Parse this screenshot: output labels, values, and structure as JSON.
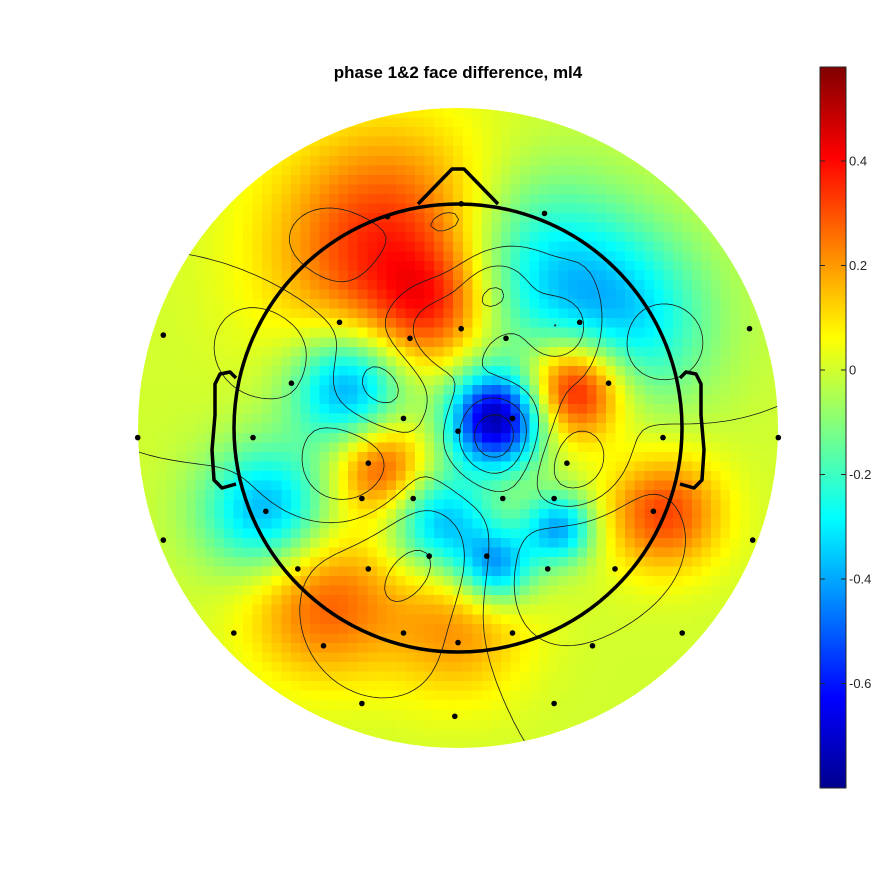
{
  "chart_data": {
    "type": "heatmap",
    "subtype": "scalp-topography",
    "title": "phase 1&2 face difference, ml4",
    "colormap": "jet",
    "color_range": [
      -0.8,
      0.58
    ],
    "colorbar": {
      "ticks": [
        0.4,
        0.2,
        0,
        -0.2,
        -0.4,
        -0.6
      ],
      "tick_labels": [
        "0.4",
        "0.2",
        "0",
        "-0.2",
        "-0.4",
        "-0.6"
      ]
    },
    "sources": [
      {
        "x": -0.3,
        "y": 0.81,
        "value": 0.38,
        "spread": 0.36
      },
      {
        "x": -0.1,
        "y": 0.55,
        "value": 0.22,
        "spread": 0.18
      },
      {
        "x": 0.52,
        "y": 0.18,
        "value": 0.52,
        "spread": 0.16
      },
      {
        "x": 0.17,
        "y": 0.04,
        "value": -0.75,
        "spread": 0.15
      },
      {
        "x": -0.49,
        "y": 0.18,
        "value": -0.45,
        "spread": 0.18
      },
      {
        "x": -0.34,
        "y": -0.18,
        "value": 0.32,
        "spread": 0.15
      },
      {
        "x": 0.33,
        "y": 0.73,
        "value": -0.3,
        "spread": 0.3
      },
      {
        "x": 0.74,
        "y": 0.48,
        "value": -0.3,
        "spread": 0.28
      },
      {
        "x": -0.08,
        "y": -0.42,
        "value": -0.38,
        "spread": 0.16
      },
      {
        "x": 0.17,
        "y": -0.62,
        "value": -0.42,
        "spread": 0.12
      },
      {
        "x": 0.45,
        "y": -0.45,
        "value": -0.4,
        "spread": 0.11
      },
      {
        "x": -0.86,
        "y": -0.37,
        "value": -0.4,
        "spread": 0.2
      },
      {
        "x": -0.6,
        "y": -0.78,
        "value": 0.28,
        "spread": 0.24
      },
      {
        "x": 0.92,
        "y": -0.38,
        "value": 0.32,
        "spread": 0.18
      },
      {
        "x": 0.0,
        "y": -0.9,
        "value": 0.2,
        "spread": 0.22
      }
    ],
    "contour_levels": [
      -0.6,
      -0.4,
      -0.2,
      0,
      0.2,
      0.4
    ],
    "electrodes": [
      [
        -0.22,
        0.66
      ],
      [
        0.01,
        0.7
      ],
      [
        0.27,
        0.67
      ],
      [
        -0.92,
        0.29
      ],
      [
        -0.37,
        0.33
      ],
      [
        -0.15,
        0.28
      ],
      [
        0.01,
        0.31
      ],
      [
        0.15,
        0.28
      ],
      [
        0.38,
        0.33
      ],
      [
        0.91,
        0.31
      ],
      [
        -0.52,
        0.14
      ],
      [
        0.47,
        0.14
      ],
      [
        -0.64,
        -0.03
      ],
      [
        -0.17,
        0.03
      ],
      [
        0.0,
        -0.01
      ],
      [
        0.17,
        0.03
      ],
      [
        0.64,
        -0.03
      ],
      [
        -1.0,
        -0.03
      ],
      [
        -0.28,
        -0.11
      ],
      [
        0.34,
        -0.11
      ],
      [
        1.0,
        -0.03
      ],
      [
        -0.6,
        -0.26
      ],
      [
        -0.3,
        -0.22
      ],
      [
        -0.14,
        -0.22
      ],
      [
        0.14,
        -0.22
      ],
      [
        0.3,
        -0.22
      ],
      [
        0.61,
        -0.26
      ],
      [
        -0.92,
        -0.35
      ],
      [
        0.92,
        -0.35
      ],
      [
        -0.5,
        -0.44
      ],
      [
        -0.28,
        -0.44
      ],
      [
        -0.09,
        -0.4
      ],
      [
        0.09,
        -0.4
      ],
      [
        0.28,
        -0.44
      ],
      [
        0.49,
        -0.44
      ],
      [
        -0.7,
        -0.64
      ],
      [
        -0.42,
        -0.68
      ],
      [
        -0.17,
        -0.64
      ],
      [
        0.0,
        -0.67
      ],
      [
        0.17,
        -0.64
      ],
      [
        0.42,
        -0.68
      ],
      [
        0.7,
        -0.64
      ],
      [
        -0.3,
        -0.86
      ],
      [
        -0.01,
        -0.9
      ],
      [
        0.3,
        -0.86
      ]
    ]
  }
}
